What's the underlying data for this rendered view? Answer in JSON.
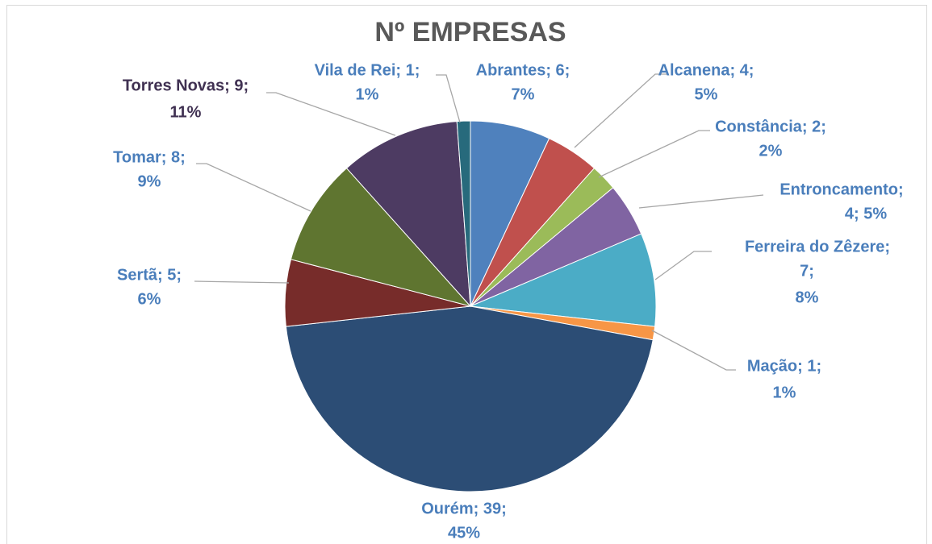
{
  "chart_data": {
    "type": "pie",
    "title": "Nº EMPRESAS",
    "categories": [
      "Abrantes",
      "Alcanena",
      "Constância",
      "Entroncamento",
      "Ferreira do Zêzere",
      "Mação",
      "Ourém",
      "Sertã",
      "Tomar",
      "Torres Novas",
      "Vila de Rei"
    ],
    "values": [
      6,
      4,
      2,
      4,
      7,
      1,
      39,
      5,
      8,
      9,
      1
    ],
    "value_labels": [
      [
        "Abrantes; 6;",
        "7%"
      ],
      [
        "Alcanena; 4;",
        "5%"
      ],
      [
        "Constância; 2;",
        "2%"
      ],
      [
        "Entroncamento;",
        "4; 5%"
      ],
      [
        "Ferreira do Zêzere;",
        "7;",
        "8%"
      ],
      [
        "Mação; 1;",
        "1%"
      ],
      [
        "Ourém; 39;",
        "45%"
      ],
      [
        "Sertã; 5;",
        "6%"
      ],
      [
        "Tomar; 8;",
        "9%"
      ],
      [
        "Torres Novas; 9;",
        "11%"
      ],
      [
        "Vila de Rei; 1;",
        "1%"
      ]
    ],
    "colors": [
      "#4f81bd",
      "#c0504d",
      "#9bbb59",
      "#8064a2",
      "#4bacc6",
      "#f79646",
      "#2c4d75",
      "#772c2a",
      "#5f7530",
      "#4d3b62",
      "#276a7c"
    ],
    "label_colors": [
      "#4a7ebb",
      "#4a7ebb",
      "#4a7ebb",
      "#4a7ebb",
      "#4a7ebb",
      "#4a7ebb",
      "#4a7ebb",
      "#4a7ebb",
      "#4a7ebb",
      "#403152",
      "#4a7ebb"
    ]
  }
}
